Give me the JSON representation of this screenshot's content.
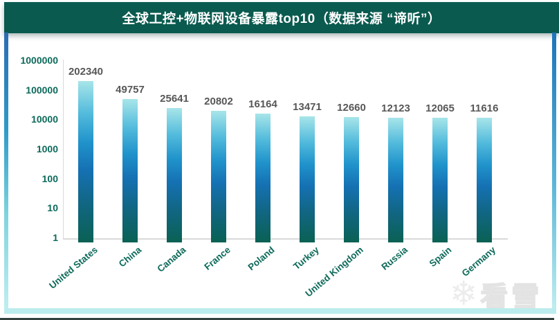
{
  "page": {
    "title": "全球工控+物联网设备暴露top10（数据来源 “谛听”）",
    "watermark": {
      "icon": "snowflake-icon",
      "text": "看雪"
    }
  },
  "chart_data": {
    "type": "bar",
    "title": "全球工控+物联网设备暴露top10（数据来源 “谛听”）",
    "categories": [
      "United States",
      "China",
      "Canada",
      "France",
      "Poland",
      "Turkey",
      "United Kingdom",
      "Russia",
      "Spain",
      "Germany"
    ],
    "values": [
      202340,
      49757,
      25641,
      20802,
      16164,
      13471,
      12660,
      12123,
      12065,
      11616
    ],
    "xlabel": "",
    "ylabel": "",
    "y_scale": "log10",
    "y_ticks": [
      1,
      10,
      100,
      1000,
      10000,
      100000,
      1000000
    ],
    "ylim": [
      1,
      1000000
    ],
    "grid": false,
    "legend": "none",
    "colors": {
      "header_bg": "#0a5a4f",
      "axis_label": "#0c695a",
      "value_label": "#575757",
      "axis_line": "#d9d9d9",
      "bar_top": "#a7e5e9",
      "bar_mid": "#1571b3",
      "bar_bottom": "#0a6153"
    }
  }
}
